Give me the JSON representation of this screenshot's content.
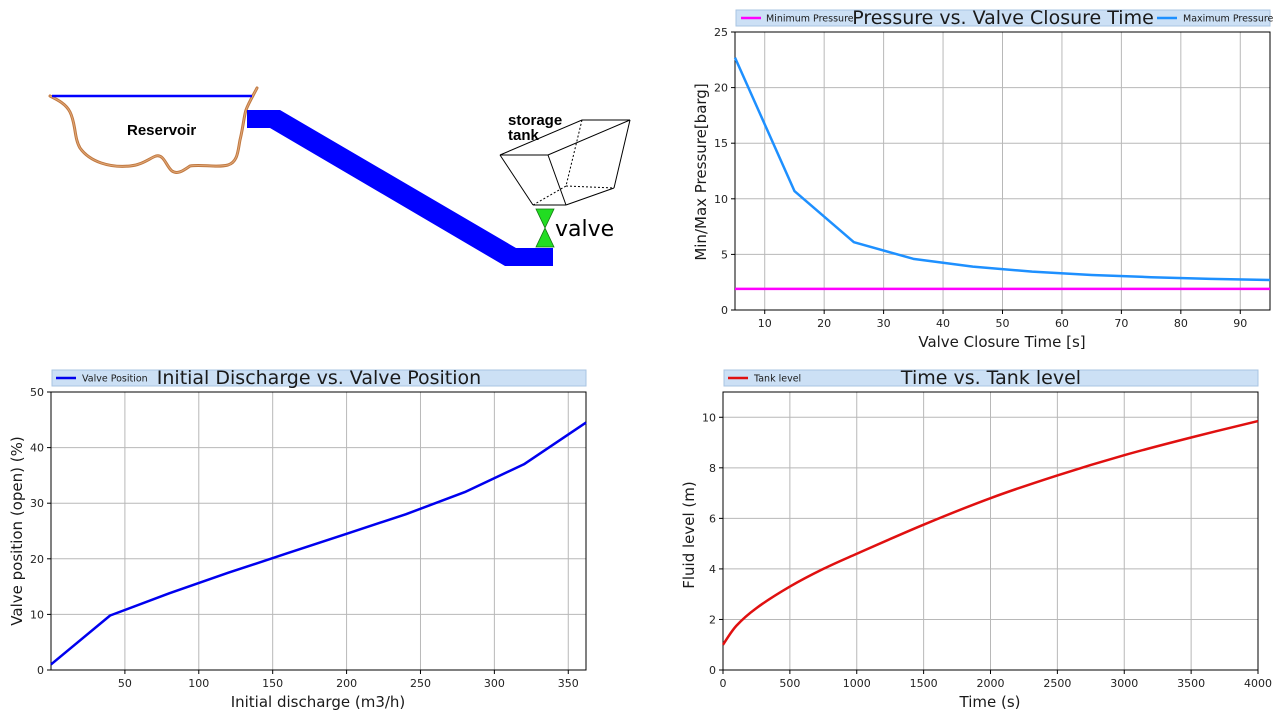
{
  "diagram": {
    "reservoir_label": "Reservoir",
    "tank_label_line1": "storage",
    "tank_label_line2": "tank",
    "valve_label": "valve",
    "colors": {
      "pipe": "#0000ff",
      "water": "#0000ff",
      "ground": "#c07840",
      "valve": "#22dd22"
    }
  },
  "chart_data": [
    {
      "id": "pressure",
      "type": "line",
      "title": "Pressure vs. Valve Closure Time",
      "xlabel": "Valve Closure Time [s]",
      "ylabel": "Min/Max Pressure[barg]",
      "xlim": [
        5,
        95
      ],
      "ylim": [
        0,
        25
      ],
      "xticks": [
        10,
        20,
        30,
        40,
        50,
        60,
        70,
        80,
        90
      ],
      "yticks": [
        0,
        5,
        10,
        15,
        20,
        25
      ],
      "grid": true,
      "series": [
        {
          "name": "Minimum Pressure",
          "color": "#ff00ff",
          "legend": "left",
          "x": [
            5,
            95
          ],
          "y": [
            1.9,
            1.9
          ]
        },
        {
          "name": "Maximum Pressure",
          "color": "#1e90ff",
          "legend": "right",
          "x": [
            5,
            15,
            25,
            35,
            45,
            55,
            65,
            75,
            85,
            95
          ],
          "y": [
            22.7,
            10.7,
            6.1,
            4.6,
            3.9,
            3.45,
            3.15,
            2.95,
            2.8,
            2.7
          ]
        }
      ]
    },
    {
      "id": "discharge",
      "type": "line",
      "title": "Initial Discharge vs. Valve Position",
      "xlabel": "Initial discharge (m3/h)",
      "ylabel": "Valve position (open) (%)",
      "xlim": [
        0,
        362
      ],
      "ylim": [
        0,
        50
      ],
      "xticks": [
        50,
        100,
        150,
        200,
        250,
        300,
        350
      ],
      "yticks": [
        0,
        10,
        20,
        30,
        40,
        50
      ],
      "grid": true,
      "series": [
        {
          "name": "Valve Position",
          "color": "#0000ee",
          "legend": "left",
          "x": [
            0,
            40,
            80,
            120,
            160,
            200,
            240,
            280,
            320,
            362
          ],
          "y": [
            1,
            9.8,
            13.8,
            17.5,
            21,
            24.5,
            28,
            32,
            37,
            44.5
          ]
        }
      ]
    },
    {
      "id": "tank",
      "type": "line",
      "title": "Time vs. Tank level",
      "xlabel": "Time (s)",
      "ylabel": "Fluid level (m)",
      "xlim": [
        0,
        4000
      ],
      "ylim": [
        0,
        11
      ],
      "xticks": [
        0,
        500,
        1000,
        1500,
        2000,
        2500,
        3000,
        3500,
        4000
      ],
      "yticks": [
        0,
        2,
        4,
        6,
        8,
        10
      ],
      "grid": true,
      "series": [
        {
          "name": "Tank level",
          "color": "#e01010",
          "legend": "left",
          "x": [
            0,
            100,
            250,
            500,
            750,
            1000,
            1500,
            2000,
            2500,
            3000,
            3500,
            4000
          ],
          "y": [
            1.0,
            1.75,
            2.45,
            3.3,
            4.0,
            4.6,
            5.75,
            6.8,
            7.7,
            8.5,
            9.2,
            9.85
          ]
        }
      ]
    }
  ]
}
